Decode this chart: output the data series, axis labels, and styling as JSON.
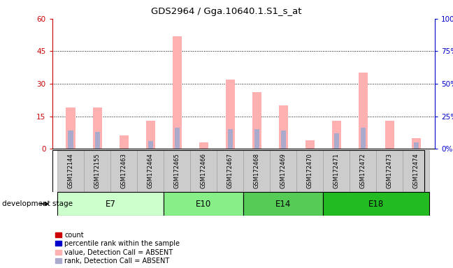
{
  "title": "GDS2964 / Gga.10640.1.S1_s_at",
  "samples": [
    "GSM172144",
    "GSM172155",
    "GSM172463",
    "GSM172464",
    "GSM172465",
    "GSM172466",
    "GSM172467",
    "GSM172468",
    "GSM172469",
    "GSM172470",
    "GSM172471",
    "GSM172472",
    "GSM172473",
    "GSM172474"
  ],
  "pink_values": [
    19,
    19,
    6,
    13,
    52,
    3,
    32,
    26,
    20,
    4,
    13,
    35,
    13,
    5
  ],
  "blue_rank_values": [
    14,
    13,
    0,
    6,
    16,
    0,
    15,
    15,
    14,
    0,
    12,
    16,
    0,
    5
  ],
  "left_ylim": [
    0,
    60
  ],
  "right_ylim": [
    0,
    100
  ],
  "left_yticks": [
    0,
    15,
    30,
    45,
    60
  ],
  "right_yticks": [
    0,
    25,
    50,
    75,
    100
  ],
  "left_tick_labels": [
    "0",
    "15",
    "30",
    "45",
    "60"
  ],
  "right_tick_labels": [
    "0%",
    "25%",
    "50%",
    "75%",
    "100%"
  ],
  "left_axis_color": "#cc0000",
  "right_axis_color": "#0000cc",
  "pink_color": "#ffb0b0",
  "blue_color": "#aaaacc",
  "bar_width": 0.35,
  "stage_defs": [
    {
      "label": "E7",
      "indices": [
        0,
        1,
        2,
        3
      ],
      "color": "#ccffcc"
    },
    {
      "label": "E10",
      "indices": [
        4,
        5,
        6
      ],
      "color": "#88ee88"
    },
    {
      "label": "E14",
      "indices": [
        7,
        8,
        9
      ],
      "color": "#55cc55"
    },
    {
      "label": "E18",
      "indices": [
        10,
        11,
        12,
        13
      ],
      "color": "#22bb22"
    }
  ],
  "legend_colors": [
    "#cc0000",
    "#0000cc",
    "#ffb0b0",
    "#aaaacc"
  ],
  "legend_labels": [
    "count",
    "percentile rank within the sample",
    "value, Detection Call = ABSENT",
    "rank, Detection Call = ABSENT"
  ],
  "development_stage_label": "development stage"
}
